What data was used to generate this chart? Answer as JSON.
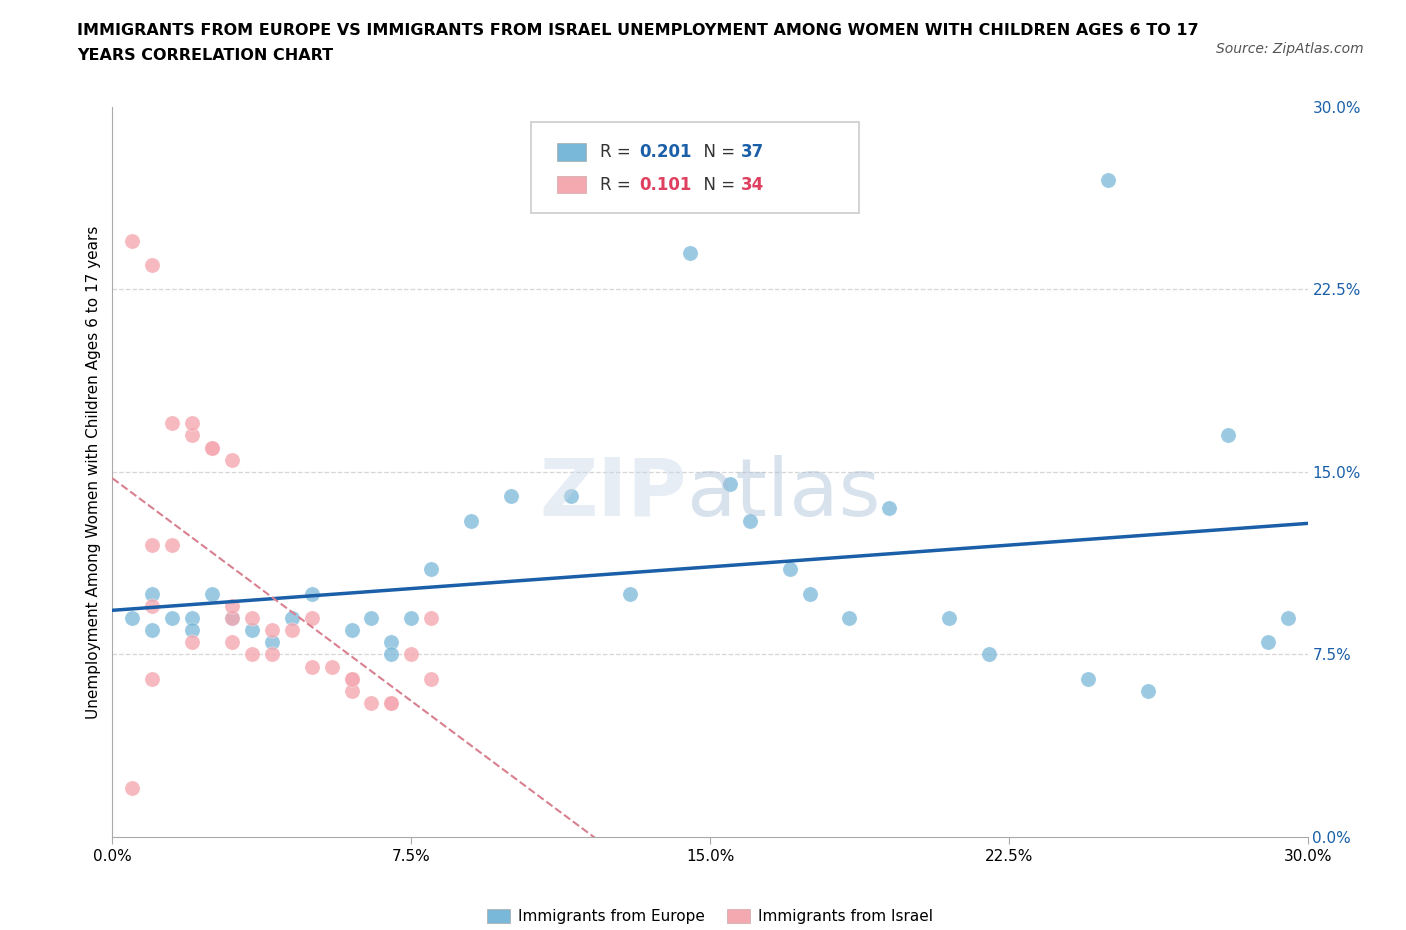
{
  "title_line1": "IMMIGRANTS FROM EUROPE VS IMMIGRANTS FROM ISRAEL UNEMPLOYMENT AMONG WOMEN WITH CHILDREN AGES 6 TO 17",
  "title_line2": "YEARS CORRELATION CHART",
  "source": "Source: ZipAtlas.com",
  "ylabel": "Unemployment Among Women with Children Ages 6 to 17 years",
  "xlim": [
    0.0,
    0.3
  ],
  "ylim": [
    0.0,
    0.3
  ],
  "R_europe": 0.201,
  "N_europe": 37,
  "R_israel": 0.101,
  "N_israel": 34,
  "color_europe": "#7ab8d9",
  "color_israel": "#f4a8b0",
  "trendline_europe_color": "#1a5fa8",
  "trendline_israel_color": "#d98090",
  "tick_vals": [
    0.0,
    0.075,
    0.15,
    0.225,
    0.3
  ],
  "tick_labels": [
    "0.0%",
    "7.5%",
    "15.0%",
    "22.5%",
    "30.0%"
  ],
  "europe_x": [
    0.005,
    0.01,
    0.01,
    0.015,
    0.02,
    0.02,
    0.025,
    0.03,
    0.035,
    0.04,
    0.045,
    0.05,
    0.06,
    0.065,
    0.07,
    0.07,
    0.075,
    0.08,
    0.09,
    0.1,
    0.115,
    0.13,
    0.145,
    0.16,
    0.17,
    0.175,
    0.185,
    0.21,
    0.22,
    0.245,
    0.26,
    0.28,
    0.29,
    0.295,
    0.25,
    0.155,
    0.195
  ],
  "europe_y": [
    0.09,
    0.1,
    0.085,
    0.09,
    0.09,
    0.085,
    0.1,
    0.09,
    0.085,
    0.08,
    0.09,
    0.1,
    0.085,
    0.09,
    0.08,
    0.075,
    0.09,
    0.11,
    0.13,
    0.14,
    0.14,
    0.1,
    0.24,
    0.13,
    0.11,
    0.1,
    0.09,
    0.09,
    0.075,
    0.065,
    0.06,
    0.165,
    0.08,
    0.09,
    0.27,
    0.145,
    0.135
  ],
  "israel_x": [
    0.005,
    0.01,
    0.015,
    0.02,
    0.025,
    0.03,
    0.01,
    0.015,
    0.02,
    0.025,
    0.03,
    0.03,
    0.035,
    0.04,
    0.045,
    0.05,
    0.055,
    0.06,
    0.06,
    0.065,
    0.07,
    0.075,
    0.08,
    0.08,
    0.01,
    0.02,
    0.03,
    0.035,
    0.04,
    0.05,
    0.06,
    0.07,
    0.005,
    0.01
  ],
  "israel_y": [
    0.245,
    0.235,
    0.17,
    0.165,
    0.16,
    0.155,
    0.12,
    0.12,
    0.17,
    0.16,
    0.09,
    0.095,
    0.09,
    0.085,
    0.085,
    0.09,
    0.07,
    0.065,
    0.06,
    0.055,
    0.055,
    0.075,
    0.09,
    0.065,
    0.095,
    0.08,
    0.08,
    0.075,
    0.075,
    0.07,
    0.065,
    0.055,
    0.02,
    0.065
  ]
}
